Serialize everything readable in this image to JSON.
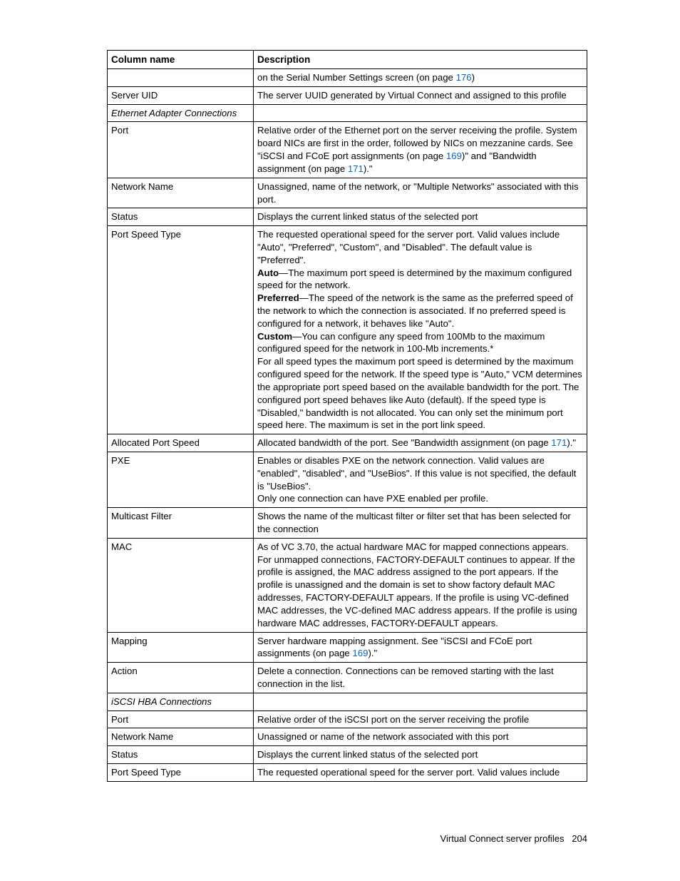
{
  "link_color": "#0066cc",
  "table": {
    "headers": {
      "col1": "Column name",
      "col2": "Description"
    },
    "rows": [
      {
        "c1_html": "",
        "c2_html": "on the Serial Number Settings screen (on page <a class=\"page-link\" data-name=\"link-page-176\" data-interactable=\"true\">176</a>)"
      },
      {
        "c1_html": "Server UID",
        "c2_html": "The server UUID generated by Virtual Connect and assigned to this profile"
      },
      {
        "section": true,
        "c1_html": "Ethernet Adapter Connections",
        "c2_html": ""
      },
      {
        "c1_html": "Port",
        "c2_html": "Relative order of the Ethernet port on the server receiving the profile. System board NICs are first in the order, followed by NICs on mezzanine cards. See \"iSCSI and FCoE port assignments (on page <a class=\"page-link\" data-name=\"link-page-169\" data-interactable=\"true\">169</a>)\" and \"Bandwidth assignment (on page <a class=\"page-link\" data-name=\"link-page-171\" data-interactable=\"true\">171</a>).\""
      },
      {
        "c1_html": "Network Name",
        "c2_html": "Unassigned, name of the network, or \"Multiple Networks\" associated with this port."
      },
      {
        "c1_html": "Status",
        "c2_html": "Displays the current linked status of the selected port"
      },
      {
        "c1_html": "Port Speed Type",
        "c2_html": "The requested operational speed for the server port. Valid values include \"Auto\", \"Preferred\", \"Custom\", and \"Disabled\". The default value is \"Preferred\".<br><b>Auto</b>—The maximum port speed is determined by the maximum configured speed for the network.<br><b>Preferred</b>—The speed of the network is the same as the preferred speed of the network to which the connection is associated. If no preferred speed is configured for a network, it behaves like \"Auto\".<br><b>Custom</b>—You can configure any speed from 100Mb to the maximum configured speed for the network in 100-Mb increments.*<br>For all speed types the maximum port speed is determined by the maximum configured speed for the network. If the speed type is \"Auto,\" VCM determines the appropriate port speed based on the available bandwidth for the port. The configured port speed behaves like Auto (default). If the speed type is \"Disabled,\" bandwidth is not allocated. You can only set the minimum port speed here. The maximum is set in the port link speed."
      },
      {
        "c1_html": "Allocated Port Speed",
        "c2_html": "Allocated bandwidth of the port. See \"Bandwidth assignment (on page <a class=\"page-link\" data-name=\"link-page-171\" data-interactable=\"true\">171</a>).\""
      },
      {
        "c1_html": "PXE",
        "c2_html": "Enables or disables PXE on the network connection. Valid values are \"enabled\", \"disabled\", and \"UseBios\". If this value is not specified, the default is \"UseBios\".<br>Only one connection can have PXE enabled per profile."
      },
      {
        "c1_html": "Multicast Filter",
        "c2_html": "Shows the name of the multicast filter or filter set that has been selected for the connection"
      },
      {
        "c1_html": "MAC",
        "c2_html": "As of VC 3.70, the actual hardware MAC for mapped connections appears. For unmapped connections, FACTORY-DEFAULT continues to appear. If the profile is assigned, the MAC address assigned to the port appears. If the profile is unassigned and the domain is set to show factory default MAC addresses, FACTORY-DEFAULT appears. If the profile is using VC-defined MAC addresses, the VC-defined MAC address appears. If the profile is using hardware MAC addresses, FACTORY-DEFAULT appears."
      },
      {
        "c1_html": "Mapping",
        "c2_html": "Server hardware mapping assignment. See \"iSCSI and FCoE port assignments (on page <a class=\"page-link\" data-name=\"link-page-169\" data-interactable=\"true\">169</a>).\""
      },
      {
        "c1_html": "Action",
        "c2_html": "Delete a connection. Connections can be removed starting with the last connection in the list."
      },
      {
        "section": true,
        "c1_html": "iSCSI HBA Connections",
        "c2_html": ""
      },
      {
        "c1_html": "Port",
        "c2_html": "Relative order of the iSCSI port on the server receiving the profile"
      },
      {
        "c1_html": "Network Name",
        "c2_html": "Unassigned or name of the network associated with this port"
      },
      {
        "c1_html": "Status",
        "c2_html": "Displays the current linked status of the selected port"
      },
      {
        "c1_html": "Port Speed Type",
        "c2_html": "The requested operational speed for the server port. Valid values include"
      }
    ]
  },
  "footer": {
    "section": "Virtual Connect server profiles",
    "page": "204"
  }
}
